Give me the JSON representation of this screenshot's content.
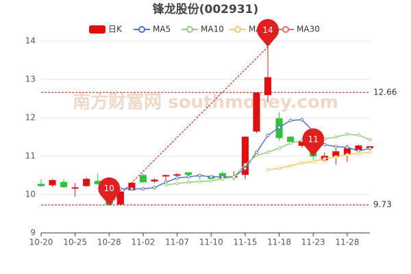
{
  "chart_data": {
    "type": "candlestick",
    "title": "锋龙股份(002931)",
    "categories": [
      "10-20",
      null,
      null,
      "10-25",
      null,
      null,
      "10-28",
      null,
      null,
      "11-02",
      null,
      null,
      "11-07",
      null,
      null,
      "11-10",
      null,
      null,
      "11-15",
      null,
      null,
      "11-18",
      null,
      null,
      "11-23",
      null,
      null,
      "11-28",
      null,
      null
    ],
    "candles": {
      "name": "日K",
      "up_color": "#e01010",
      "down_color": "#2fc23a",
      "open": [
        10.27,
        10.25,
        10.32,
        10.17,
        10.23,
        10.35,
        10.33,
        9.75,
        10.12,
        10.5,
        10.35,
        10.48,
        10.5,
        10.57,
        10.5,
        10.48,
        10.55,
        10.45,
        10.52,
        11.65,
        12.6,
        11.98,
        11.5,
        11.28,
        11.5,
        10.9,
        11.0,
        11.05,
        11.15,
        11.22
      ],
      "high": [
        10.4,
        10.4,
        10.4,
        10.3,
        10.45,
        10.55,
        10.35,
        10.1,
        10.32,
        10.55,
        10.42,
        10.52,
        10.56,
        10.58,
        10.52,
        10.5,
        10.6,
        10.6,
        11.52,
        12.65,
        13.85,
        12.15,
        11.52,
        11.45,
        11.55,
        11.1,
        11.2,
        11.3,
        11.3,
        11.27
      ],
      "low": [
        10.2,
        10.2,
        10.17,
        9.95,
        10.2,
        10.25,
        9.72,
        9.73,
        10.1,
        10.3,
        10.3,
        10.25,
        10.45,
        10.5,
        10.4,
        10.38,
        10.35,
        10.38,
        10.4,
        11.6,
        12.4,
        11.4,
        11.3,
        11.22,
        10.9,
        10.85,
        10.78,
        10.85,
        11.1,
        11.2
      ],
      "close": [
        10.23,
        10.37,
        10.2,
        10.18,
        10.4,
        10.28,
        9.75,
        10.07,
        10.3,
        10.33,
        10.38,
        10.5,
        10.52,
        10.52,
        10.48,
        10.42,
        10.42,
        10.47,
        11.5,
        12.65,
        13.05,
        11.48,
        11.38,
        11.38,
        11.0,
        11.0,
        11.12,
        11.2,
        11.27,
        11.25
      ]
    },
    "series": [
      {
        "name": "MA5",
        "color": "#5470c6",
        "values": [
          null,
          null,
          null,
          null,
          null,
          null,
          10.12,
          10.15,
          10.15,
          10.15,
          10.18,
          10.32,
          10.43,
          10.46,
          10.5,
          10.46,
          10.46,
          10.46,
          10.68,
          11.1,
          11.54,
          11.75,
          11.93,
          11.95,
          11.65,
          11.3,
          11.25,
          11.23,
          11.14,
          11.2
        ]
      },
      {
        "name": "MA10",
        "color": "#91cc75",
        "values": [
          null,
          null,
          null,
          null,
          null,
          null,
          null,
          null,
          null,
          null,
          null,
          10.25,
          10.29,
          10.32,
          10.34,
          10.36,
          10.41,
          10.46,
          10.78,
          11.02,
          11.1,
          11.21,
          11.34,
          11.41,
          11.36,
          11.45,
          11.5,
          11.57,
          11.55,
          11.43
        ]
      },
      {
        "name": "MA20",
        "color": "#fac858",
        "values": [
          null,
          null,
          null,
          null,
          null,
          null,
          null,
          null,
          null,
          null,
          null,
          null,
          null,
          null,
          null,
          null,
          null,
          null,
          null,
          null,
          10.64,
          10.68,
          10.75,
          10.82,
          10.86,
          10.93,
          10.98,
          11.04,
          11.07,
          11.1
        ]
      },
      {
        "name": "MA30",
        "color": "#ee6666",
        "values": [
          null,
          null,
          null,
          null,
          null,
          null,
          null,
          null,
          null,
          null,
          null,
          null,
          null,
          null,
          null,
          null,
          null,
          null,
          null,
          null,
          null,
          null,
          null,
          null,
          null,
          null,
          null,
          null,
          null,
          null
        ]
      }
    ],
    "ylim": [
      9,
      14
    ],
    "yticks": [
      9,
      10,
      11,
      12,
      13,
      14
    ],
    "grid": true,
    "reference_lines": [
      {
        "value": 12.66,
        "color": "#c00000"
      },
      {
        "value": 9.73,
        "color": "#c00000"
      }
    ],
    "annotations": [
      {
        "label": "10",
        "index": 6,
        "value": 9.72
      },
      {
        "label": "14",
        "index": 20,
        "value": 13.85
      },
      {
        "label": "11",
        "index": 24,
        "value": 11.0
      }
    ],
    "watermark": "南方财富网 southmoney.com"
  }
}
